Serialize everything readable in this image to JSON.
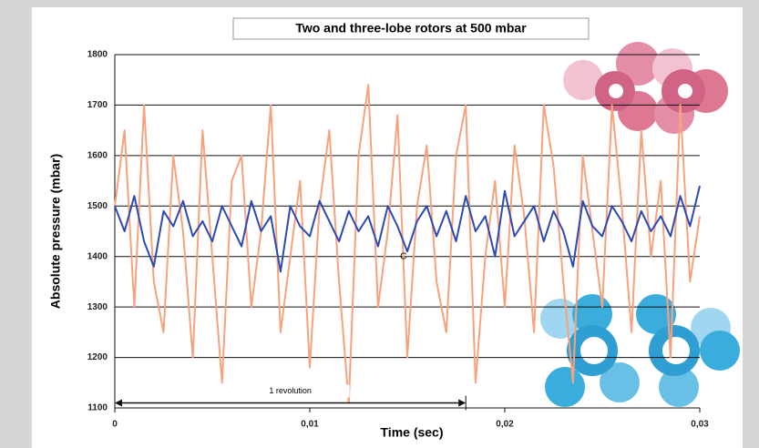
{
  "chart_data": {
    "type": "line",
    "title": "Two and three-lobe rotors at 500 mbar",
    "x_label": "Time (sec)",
    "y_label": "Absolute pressure (mbar)",
    "x": [
      0,
      0.0005,
      0.001,
      0.0015,
      0.002,
      0.0025,
      0.003,
      0.0035,
      0.004,
      0.0045,
      0.005,
      0.0055,
      0.006,
      0.0065,
      0.007,
      0.0075,
      0.008,
      0.0085,
      0.009,
      0.0095,
      0.01,
      0.0105,
      0.011,
      0.0115,
      0.012,
      0.0125,
      0.013,
      0.0135,
      0.014,
      0.0145,
      0.015,
      0.0155,
      0.016,
      0.0165,
      0.017,
      0.0175,
      0.018,
      0.0185,
      0.019,
      0.0195,
      0.02,
      0.0205,
      0.021,
      0.0215,
      0.022,
      0.0225,
      0.023,
      0.0235,
      0.024,
      0.0245,
      0.025,
      0.0255,
      0.026,
      0.0265,
      0.027,
      0.0275,
      0.028,
      0.0285,
      0.029,
      0.0295,
      0.03
    ],
    "series": [
      {
        "color": "#f7a27e",
        "values": [
          1500,
          1650,
          1300,
          1700,
          1350,
          1250,
          1600,
          1450,
          1200,
          1650,
          1400,
          1150,
          1550,
          1600,
          1300,
          1450,
          1700,
          1250,
          1400,
          1550,
          1180,
          1500,
          1650,
          1350,
          1110,
          1600,
          1740,
          1300,
          1450,
          1680,
          1200,
          1500,
          1620,
          1350,
          1250,
          1600,
          1700,
          1150,
          1400,
          1550,
          1300,
          1620,
          1480,
          1250,
          1700,
          1580,
          1350,
          1150,
          1600,
          1450,
          1300,
          1700,
          1500,
          1250,
          1650,
          1400,
          1550,
          1200,
          1700,
          1350,
          1480
        ]
      },
      {
        "color": "#2d49b3",
        "values": [
          1500,
          1450,
          1520,
          1430,
          1380,
          1490,
          1460,
          1510,
          1440,
          1470,
          1430,
          1500,
          1460,
          1420,
          1510,
          1450,
          1480,
          1370,
          1500,
          1460,
          1440,
          1510,
          1470,
          1430,
          1490,
          1450,
          1480,
          1420,
          1500,
          1460,
          1410,
          1470,
          1500,
          1440,
          1490,
          1430,
          1520,
          1450,
          1480,
          1400,
          1530,
          1440,
          1470,
          1500,
          1430,
          1490,
          1450,
          1380,
          1510,
          1460,
          1440,
          1500,
          1470,
          1430,
          1490,
          1450,
          1480,
          1440,
          1520,
          1460,
          1540
        ]
      }
    ],
    "xlim": [
      0,
      0.03
    ],
    "xticks": [
      0,
      {
        "value": 0.01,
        "label": "0,01"
      },
      {
        "value": 0.02,
        "label": "0,02"
      },
      {
        "value": 0.03,
        "label": "0,03"
      }
    ],
    "ylim": [
      1100,
      1800
    ],
    "yticks": [
      1100,
      1200,
      1300,
      1400,
      1500,
      1600,
      1700,
      1800
    ],
    "grid": true,
    "annotations": [
      {
        "text": "1 revolution",
        "x": [
          0,
          0.018
        ],
        "y": 1110
      },
      {
        "text": "C",
        "x": 0.0148,
        "y": 1400
      }
    ]
  }
}
